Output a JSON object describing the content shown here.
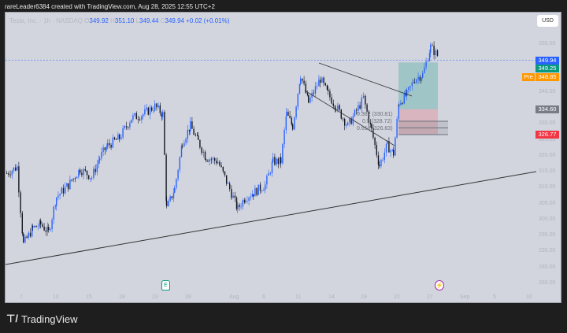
{
  "header": {
    "caption": "rareLeader6384 created with TradingView.com, Aug 28, 2025 12:55 UTC+2"
  },
  "legend": {
    "symbol": "Tesla, Inc. · 1h · NASDAQ",
    "o_label": "O",
    "open": "349.92",
    "h_label": "H",
    "high": "351.10",
    "l_label": "L",
    "low": "349.44",
    "c_label": "C",
    "close": "349.94",
    "change": "+0.02 (+0.01%)"
  },
  "currency_button": "USD",
  "price_axis": [
    "355.00",
    "340.00",
    "330.00",
    "325.00",
    "320.00",
    "315.00",
    "310.00",
    "305.00",
    "300.00",
    "295.00",
    "290.00",
    "285.00",
    "280.00"
  ],
  "price_tags": {
    "last": "349.94",
    "green": "349.25",
    "pre_label": "Pre",
    "pre": "348.85",
    "entry": "334.60",
    "stop": "326.77"
  },
  "time_axis": [
    "7",
    "10",
    "15",
    "18",
    "23",
    "28",
    "Aug",
    "6",
    "11",
    "14",
    "19",
    "22",
    "27",
    "Sep",
    "5",
    "10"
  ],
  "fib_levels": [
    "0.382 (330.81)",
    "0.5 (328.72)",
    "0.618 (326.63)"
  ],
  "colors": {
    "up": "#2962ff",
    "down": "#131722",
    "last": "#2962ff",
    "green": "#089981",
    "pre": "#ff9800",
    "entry": "#787b86",
    "stop": "#f23645"
  },
  "icons": {
    "earnings": "earnings-E-icon",
    "dividend": "event-lightning-icon"
  },
  "brand": "TradingView",
  "chart_data": {
    "type": "candlestick",
    "ylim": [
      280,
      357
    ],
    "closes": [
      314.5,
      316.5,
      292.3,
      297.3,
      298.5,
      296.0,
      307.1,
      310.8,
      315.8,
      313.3,
      319.5,
      323.2,
      325.6,
      331.8,
      333.0,
      335.5,
      333.0,
      303.4,
      309.6,
      324.4,
      329.3,
      324.4,
      319.5,
      318.2,
      309.6,
      303.4,
      307.1,
      308.4,
      310.8,
      318.2,
      318.2,
      333.0,
      329.3,
      345.4,
      336.7,
      344.1,
      339.2,
      335.5,
      329.3,
      338.0,
      328.1,
      317.0,
      323.2,
      320.7,
      336.7,
      339.2,
      344.1,
      345.4,
      354.0,
      351.1
    ]
  }
}
